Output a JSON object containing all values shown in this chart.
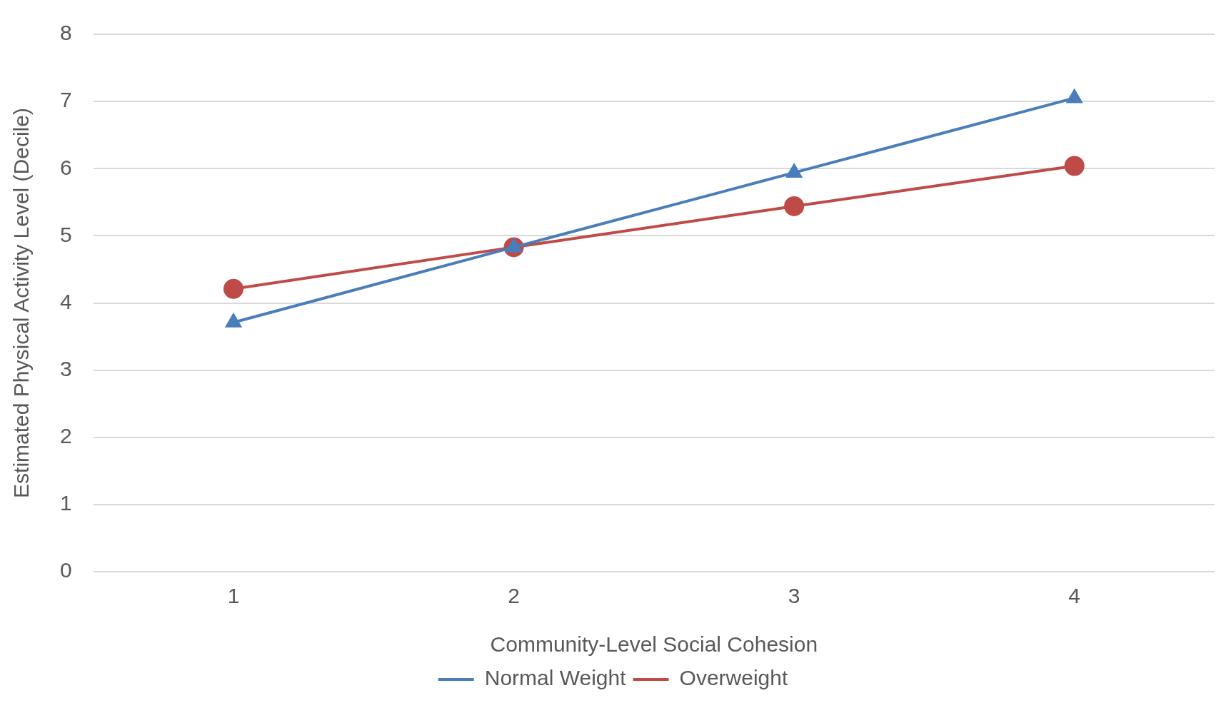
{
  "chart_data": {
    "type": "line",
    "xlabel": "Community-Level Social Cohesion",
    "ylabel": "Estimated Physical Activity Level (Decile)",
    "categories": [
      "1",
      "2",
      "3",
      "4"
    ],
    "series": [
      {
        "name": "Normal Weight",
        "color": "#4a7ebb",
        "values": [
          3.71,
          4.83,
          5.94,
          7.05
        ],
        "marker": "triangle"
      },
      {
        "name": "Overweight",
        "color": "#be4b48",
        "values": [
          4.21,
          4.83,
          5.44,
          6.04
        ],
        "marker": "circle"
      }
    ],
    "ylim": [
      0,
      8
    ],
    "yticks": [
      0,
      1,
      2,
      3,
      4,
      5,
      6,
      7,
      8
    ],
    "grid": "y",
    "legend": "bottom",
    "line_style": "solid"
  }
}
